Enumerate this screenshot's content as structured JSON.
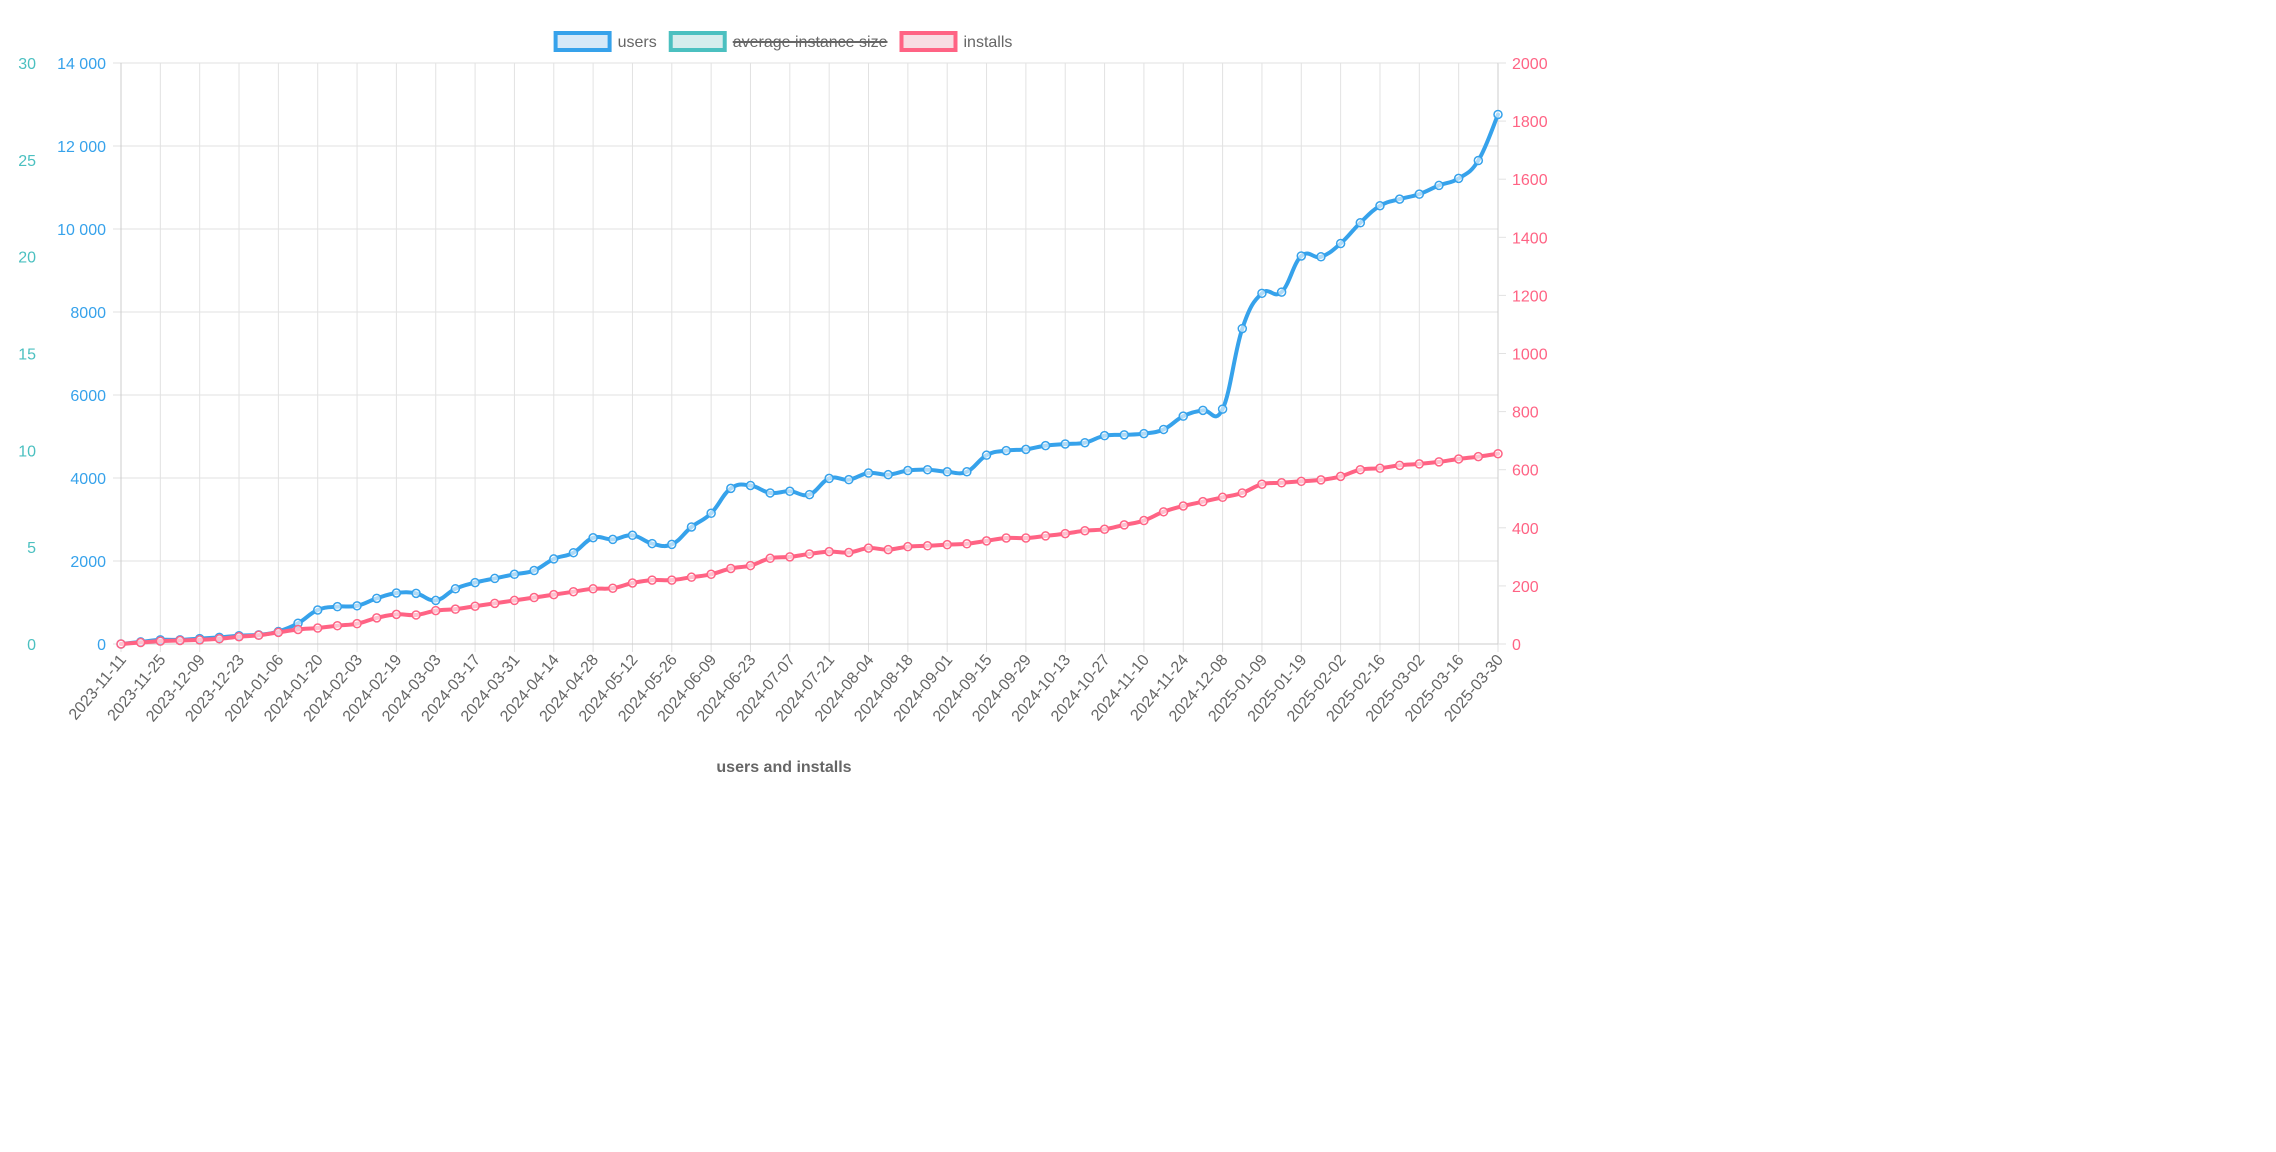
{
  "chart_data": {
    "type": "line",
    "xlabel": "users and installs",
    "colors": {
      "users": "#36a2eb",
      "avg": "#4bc0c0",
      "installs": "#ff6384",
      "grid": "#e2e2e2",
      "axis_title": "#666666",
      "tick": "#666666"
    },
    "legend": [
      {
        "key": "users",
        "label": "users",
        "hidden": false
      },
      {
        "key": "avg",
        "label": "average instance size",
        "hidden": true
      },
      {
        "key": "installs",
        "label": "installs",
        "hidden": false
      }
    ],
    "y_left_outer": {
      "min": 0,
      "max": 30,
      "ticks": [
        "0",
        "5",
        "10",
        "15",
        "20",
        "25",
        "30"
      ]
    },
    "y_left_inner": {
      "min": 0,
      "max": 14000,
      "ticks": [
        "0",
        "2000",
        "4000",
        "6000",
        "8000",
        "10 000",
        "12 000",
        "14 000"
      ]
    },
    "y_right": {
      "min": 0,
      "max": 2000,
      "ticks": [
        "0",
        "200",
        "400",
        "600",
        "800",
        "1000",
        "1200",
        "1400",
        "1600",
        "1800",
        "2000"
      ]
    },
    "x_ticks": [
      "2023-11-11",
      "2023-11-25",
      "2023-12-09",
      "2023-12-23",
      "2024-01-06",
      "2024-01-20",
      "2024-02-03",
      "2024-02-19",
      "2024-03-03",
      "2024-03-17",
      "2024-03-31",
      "2024-04-14",
      "2024-04-28",
      "2024-05-12",
      "2024-05-26",
      "2024-06-09",
      "2024-06-23",
      "2024-07-07",
      "2024-07-21",
      "2024-08-04",
      "2024-08-18",
      "2024-09-01",
      "2024-09-15",
      "2024-09-29",
      "2024-10-13",
      "2024-10-27",
      "2024-11-10",
      "2024-11-24",
      "2024-12-08",
      "2025-01-09",
      "2025-01-19",
      "2025-02-02",
      "2025-02-16",
      "2025-03-02",
      "2025-03-16",
      "2025-03-30"
    ],
    "series": [
      {
        "name": "users",
        "axis": "y_left_inner",
        "values": [
          0,
          50,
          100,
          100,
          130,
          160,
          200,
          220,
          300,
          500,
          820,
          900,
          920,
          1100,
          1230,
          1220,
          1050,
          1330,
          1480,
          1580,
          1680,
          1770,
          2050,
          2200,
          2560,
          2520,
          2620,
          2420,
          2400,
          2820,
          3150,
          3750,
          3820,
          3640,
          3680,
          3600,
          3990,
          3960,
          4120,
          4080,
          4180,
          4200,
          4150,
          4150,
          4550,
          4660,
          4690,
          4780,
          4820,
          4850,
          5020,
          5040,
          5070,
          5170,
          5490,
          5630,
          5660,
          7600,
          8450,
          8480,
          9350,
          9330,
          9650,
          10150,
          10560,
          10720,
          10840,
          11050,
          11220,
          11650,
          12760
        ]
      },
      {
        "name": "installs",
        "axis": "y_right",
        "values": [
          0,
          5,
          10,
          12,
          14,
          18,
          25,
          30,
          40,
          50,
          55,
          63,
          70,
          90,
          102,
          100,
          115,
          120,
          130,
          140,
          150,
          160,
          170,
          180,
          190,
          192,
          210,
          220,
          220,
          230,
          240,
          260,
          270,
          295,
          300,
          310,
          318,
          315,
          330,
          325,
          335,
          338,
          342,
          345,
          355,
          365,
          365,
          372,
          380,
          390,
          395,
          410,
          425,
          455,
          475,
          490,
          505,
          520,
          550,
          555,
          560,
          565,
          577,
          600,
          605,
          615,
          620,
          627,
          637,
          645,
          655
        ]
      }
    ]
  }
}
